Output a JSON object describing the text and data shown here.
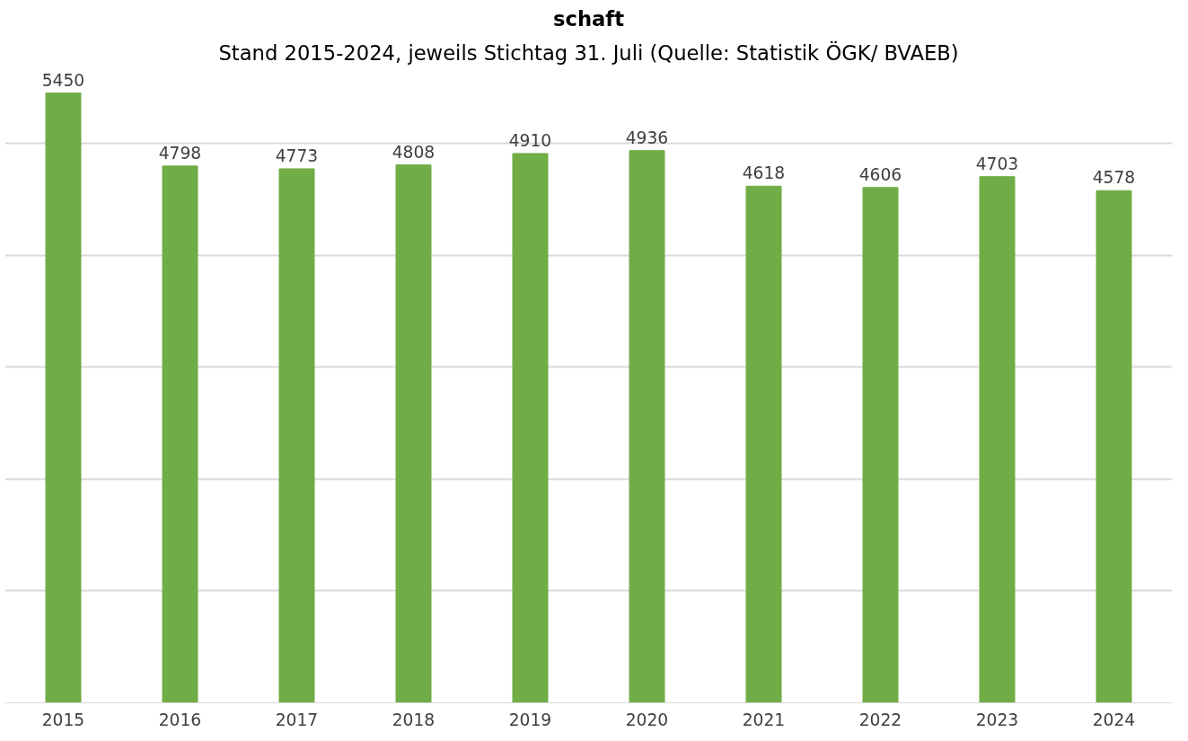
{
  "chart_data": {
    "type": "bar",
    "title": "schaft",
    "subtitle": "Stand 2015-2024, jeweils Stichtag 31. Juli (Quelle: Statistik ÖGK/ BVAEB)",
    "categories": [
      "2015",
      "2016",
      "2017",
      "2018",
      "2019",
      "2020",
      "2021",
      "2022",
      "2023",
      "2024"
    ],
    "values": [
      5450,
      4798,
      4773,
      4808,
      4910,
      4936,
      4618,
      4606,
      4703,
      4578
    ],
    "color": "#70ad47",
    "data_labels": true,
    "tick_labels": "x",
    "grid": "y"
  }
}
